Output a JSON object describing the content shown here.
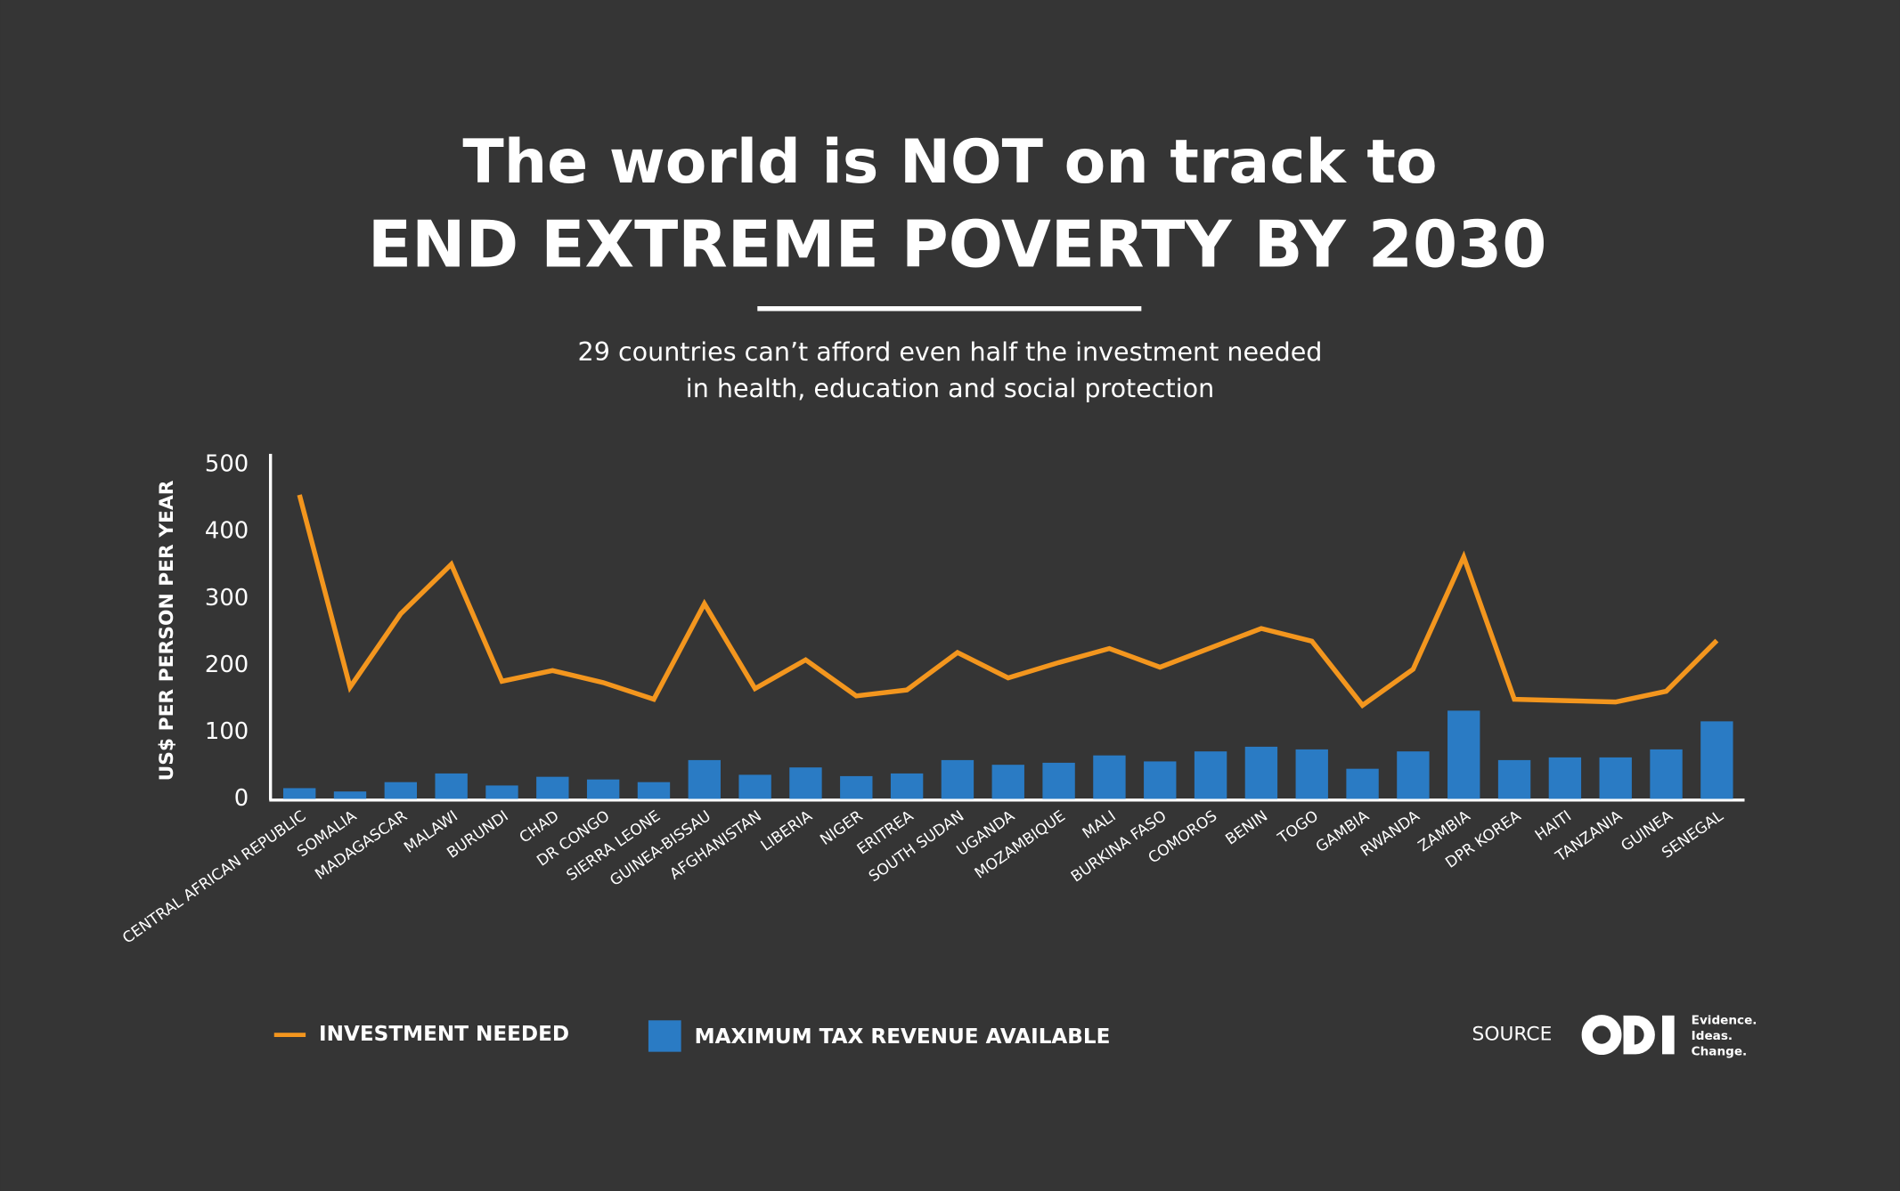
{
  "chart_data": {
    "type": "bar_line",
    "title": [
      "The world is NOT on track to",
      "END EXTREME POVERTY BY 2030"
    ],
    "subtitle": [
      "29 countries can’t afford even half the investment needed",
      "in health, education and social protection"
    ],
    "y_axis_label": "US$ PER PERSON PER YEAR",
    "categories": [
      "CENTRAL AFRICAN REPUBLIC",
      "SOMALIA",
      "MADAGASCAR",
      "MALAWI",
      "BURUNDI",
      "CHAD",
      "DR CONGO",
      "SIERRA LEONE",
      "GUINEA-BISSAU",
      "AFGHANISTAN",
      "LIBERIA",
      "NIGER",
      "ERITREA",
      "SOUTH SUDAN",
      "UGANDA",
      "MOZAMBIQUE",
      "MALI",
      "BURKINA FASO",
      "COMOROS",
      "BENIN",
      "TOGO",
      "GAMBIA",
      "RWANDA",
      "ZAMBIA",
      "DPR KOREA",
      "HAITI",
      "TANZANIA",
      "GUINEA",
      "SENEGAL"
    ],
    "series": [
      {
        "name": "INVESTMENT NEEDED",
        "type": "line",
        "color": "#f3961e",
        "values": [
          455,
          167,
          277,
          351,
          176,
          192,
          174,
          149,
          292,
          165,
          208,
          154,
          163,
          219,
          181,
          204,
          225,
          197,
          226,
          255,
          236,
          140,
          194,
          362,
          149,
          147,
          145,
          161,
          237
        ]
      },
      {
        "name": "MAXIMUM TAX REVENUE AVAILABLE",
        "type": "bar",
        "color": "#2a7bc4",
        "values": [
          16,
          11,
          25,
          38,
          20,
          33,
          29,
          25,
          58,
          36,
          47,
          34,
          38,
          58,
          51,
          54,
          65,
          56,
          71,
          78,
          74,
          45,
          71,
          132,
          58,
          62,
          62,
          74,
          116
        ]
      }
    ],
    "ylim": [
      0,
      500
    ],
    "yticks": [
      0,
      100,
      200,
      300,
      400,
      500
    ],
    "grid": false,
    "source": "SOURCE",
    "source_logo": [
      "Evidence.",
      "Ideas.",
      "Change."
    ]
  }
}
